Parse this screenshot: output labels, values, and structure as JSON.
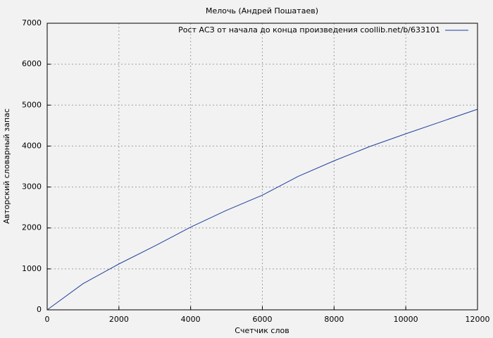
{
  "chart_data": {
    "type": "line",
    "title": "Мелочь (Андрей Пошатаев)",
    "x_label": "Счетчик слов",
    "y_label": "Авторский словарный запас",
    "x": [
      0,
      1000,
      2000,
      3000,
      4000,
      5000,
      6000,
      7000,
      8000,
      9000,
      10000,
      11000,
      12000
    ],
    "series": [
      {
        "name": "Рост АСЗ от начала до конца произведения coollib.net/b/633101",
        "color": "#1f3f9f",
        "values": [
          0,
          640,
          1120,
          1560,
          2020,
          2430,
          2800,
          3260,
          3640,
          3990,
          4300,
          4600,
          4900
        ]
      }
    ],
    "xlim": [
      0,
      12000
    ],
    "xticks": [
      0,
      2000,
      4000,
      6000,
      8000,
      10000,
      12000
    ],
    "ylim": [
      0,
      7000
    ],
    "yticks": [
      0,
      1000,
      2000,
      3000,
      4000,
      5000,
      6000,
      7000
    ],
    "grid": true,
    "legend": "top-right"
  }
}
